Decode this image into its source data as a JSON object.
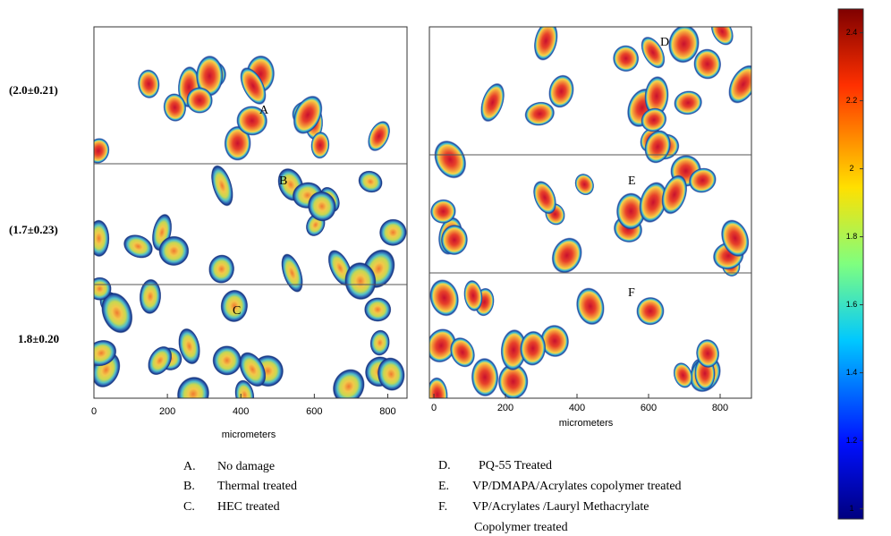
{
  "row_values": [
    "(2.0±0.21)",
    "(1.7±0.23)",
    "1.8±0.20"
  ],
  "panels": [
    {
      "label": "A"
    },
    {
      "label": "B"
    },
    {
      "label": "C"
    },
    {
      "label": "D"
    },
    {
      "label": "E"
    },
    {
      "label": "F"
    }
  ],
  "left_axis": {
    "xlim": [
      0,
      850
    ],
    "xticks": [
      0,
      200,
      400,
      600,
      800
    ],
    "label": "micrometers"
  },
  "right_axis": {
    "xlim": [
      0,
      880
    ],
    "xticks": [
      0,
      200,
      400,
      600,
      800
    ],
    "label": "micrometers"
  },
  "colorbar": {
    "lim": [
      0.97,
      2.47
    ],
    "ticks": [
      1,
      1.2,
      1.4,
      1.6,
      1.8,
      2,
      2.2,
      2.4
    ]
  },
  "legend": [
    {
      "key": "A.",
      "lines": [
        "No damage"
      ]
    },
    {
      "key": "B.",
      "lines": [
        "Thermal treated"
      ]
    },
    {
      "key": "C.",
      "lines": [
        "HEC treated"
      ]
    },
    {
      "key": "D.",
      "lines": [
        "PQ-55 Treated"
      ]
    },
    {
      "key": "E.",
      "lines": [
        "VP/DMAPA/Acrylates copolymer treated"
      ]
    },
    {
      "key": "F.",
      "lines": [
        "VP/Acrylates /Lauryl Methacrylate",
        "Copolymer treated"
      ]
    }
  ]
}
